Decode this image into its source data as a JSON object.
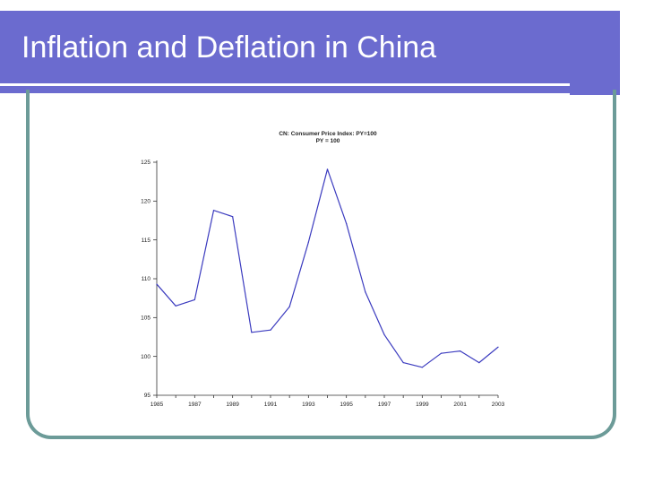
{
  "slide": {
    "title": "Inflation and Deflation in China"
  },
  "colors": {
    "title_bar": "#6b6bcf",
    "frame": "#6c9b98",
    "series_line": "#3b3bbf"
  },
  "chart_data": {
    "type": "line",
    "title": "CN: Consumer Price Index: PY=100",
    "subtitle": "PY = 100",
    "xlabel": "",
    "ylabel": "",
    "x": [
      1985,
      1986,
      1987,
      1988,
      1989,
      1990,
      1991,
      1992,
      1993,
      1994,
      1995,
      1996,
      1997,
      1998,
      1999,
      2000,
      2001,
      2002,
      2003
    ],
    "series": [
      {
        "values": [
          109.3,
          106.5,
          107.3,
          118.8,
          118.0,
          103.1,
          103.4,
          106.4,
          114.7,
          124.1,
          117.1,
          108.3,
          102.8,
          99.2,
          98.6,
          100.4,
          100.7,
          99.2,
          101.2
        ]
      }
    ],
    "ylim": [
      95,
      125
    ],
    "xlim": [
      1985,
      2003
    ],
    "yticks": [
      "95",
      "100",
      "105",
      "110",
      "115",
      "120",
      "125"
    ],
    "xticks": [
      "1985",
      "1987",
      "1989",
      "1991",
      "1993",
      "1995",
      "1997",
      "1999",
      "2001",
      "2003"
    ],
    "grid": false,
    "legend": "none"
  }
}
